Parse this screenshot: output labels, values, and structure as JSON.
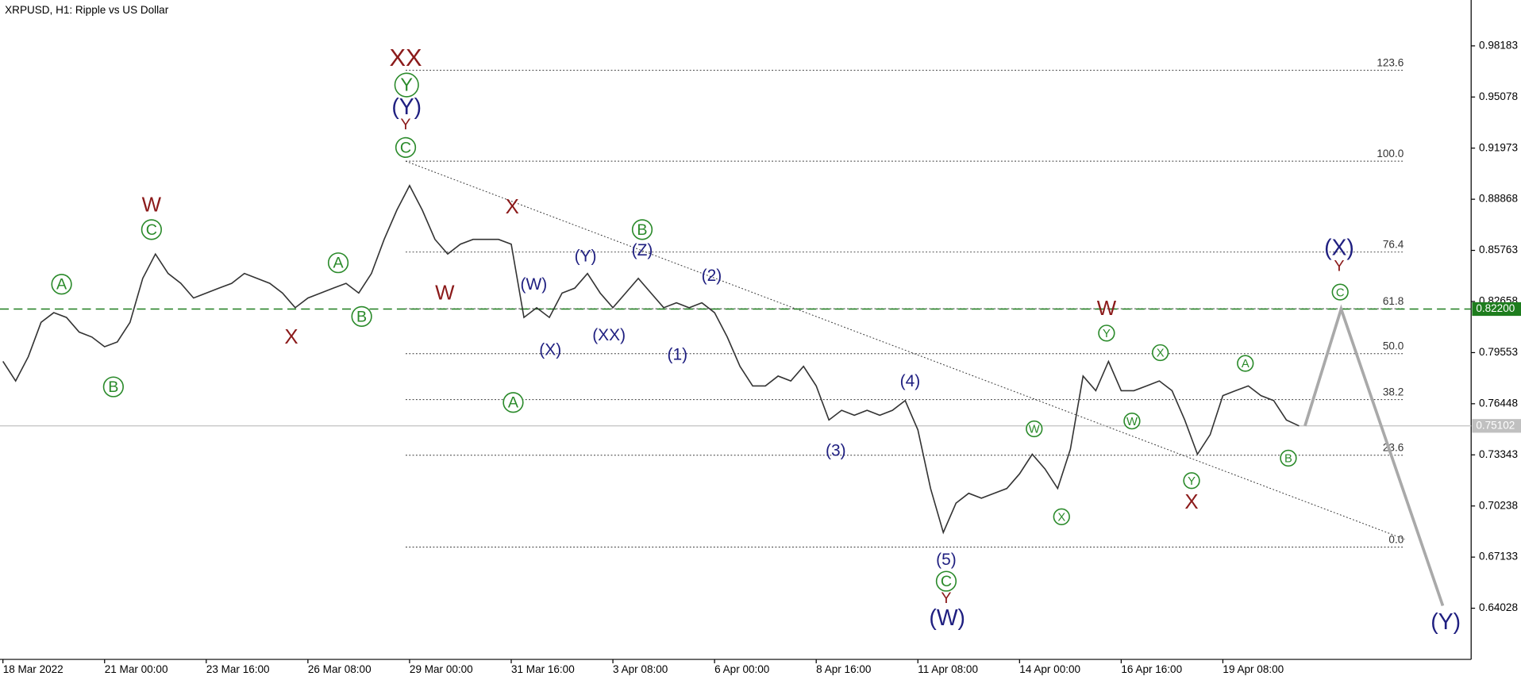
{
  "chart_data": {
    "type": "line",
    "title": "XRPUSD, H1:  Ripple vs US Dollar",
    "color": "#333333",
    "categories": [
      "18 Mar 2022",
      null,
      null,
      null,
      null,
      null,
      null,
      null,
      "21 Mar 00:00",
      null,
      null,
      null,
      null,
      null,
      null,
      null,
      "23 Mar 16:00",
      null,
      null,
      null,
      null,
      null,
      null,
      null,
      "26 Mar 08:00",
      null,
      null,
      null,
      null,
      null,
      null,
      null,
      "29 Mar 00:00",
      null,
      null,
      null,
      null,
      null,
      null,
      null,
      "31 Mar 16:00",
      null,
      null,
      null,
      null,
      null,
      null,
      null,
      "3 Apr 08:00",
      null,
      null,
      null,
      null,
      null,
      null,
      null,
      "6 Apr 00:00",
      null,
      null,
      null,
      null,
      null,
      null,
      null,
      "8 Apr 16:00",
      null,
      null,
      null,
      null,
      null,
      null,
      null,
      "11 Apr 08:00",
      null,
      null,
      null,
      null,
      null,
      null,
      null,
      "14 Apr 00:00",
      null,
      null,
      null,
      null,
      null,
      null,
      null,
      "16 Apr 16:00",
      null,
      null,
      null,
      null,
      null,
      null,
      null,
      "19 Apr 08:00",
      null,
      null,
      null,
      null,
      null,
      null
    ],
    "values": [
      0.7902,
      0.7783,
      0.7931,
      0.8139,
      0.8198,
      0.8169,
      0.808,
      0.805,
      0.7991,
      0.802,
      0.8139,
      0.8406,
      0.8554,
      0.8436,
      0.8376,
      0.8287,
      0.8317,
      0.8347,
      0.8376,
      0.8436,
      0.8406,
      0.8376,
      0.8317,
      0.8228,
      0.8287,
      0.8317,
      0.8347,
      0.8376,
      0.8317,
      0.8436,
      0.8643,
      0.8821,
      0.897,
      0.8821,
      0.8643,
      0.8554,
      0.8614,
      0.8643,
      0.8643,
      0.8643,
      0.8614,
      0.8169,
      0.8228,
      0.8169,
      0.8317,
      0.8347,
      0.8436,
      0.8317,
      0.8228,
      0.8317,
      0.8406,
      0.8317,
      0.8228,
      0.8258,
      0.8228,
      0.8258,
      0.8198,
      0.805,
      0.7872,
      0.7753,
      0.7753,
      0.7813,
      0.7783,
      0.7872,
      0.7753,
      0.7546,
      0.7605,
      0.7575,
      0.7605,
      0.7575,
      0.7605,
      0.7664,
      0.7486,
      0.713,
      0.6863,
      0.7041,
      0.7101,
      0.7071,
      0.7101,
      0.713,
      0.7219,
      0.7338,
      0.7249,
      0.713,
      0.7368,
      0.7813,
      0.7724,
      0.7902,
      0.7724,
      0.7724,
      0.7753,
      0.7783,
      0.7724,
      0.7546,
      0.7338,
      0.7457,
      0.7694,
      0.7724,
      0.7753,
      0.7694,
      0.7664,
      0.7546,
      0.751
    ],
    "forecast": {
      "color": "#a9a9a9",
      "values": [
        0.751,
        0.822,
        0.6418
      ]
    },
    "ylim": [
      0.6092,
      1.0097
    ],
    "yticks": [
      0.98183,
      0.95078,
      0.91973,
      0.88868,
      0.85763,
      0.82658,
      0.79553,
      0.76448,
      0.73343,
      0.70238,
      0.67133,
      0.64028
    ],
    "price_lines": [
      {
        "value": 0.822,
        "label": "0.82200",
        "color": "#1e7d1e",
        "style": "dashed"
      },
      {
        "value": 0.75102,
        "label": "0.75102",
        "color": "#c0c0c0",
        "style": "solid"
      }
    ],
    "fibonacci": {
      "levels": [
        "123.6",
        "100.0",
        "76.4",
        "61.8",
        "50.0",
        "38.2",
        "23.6",
        "0.0"
      ],
      "prices": [
        0.967,
        0.9118,
        0.8566,
        0.8222,
        0.7949,
        0.767,
        0.7332,
        0.6774
      ]
    },
    "trendline": [
      0.9118,
      0.6822
    ],
    "waves": [
      {
        "text": "XX",
        "color": "#8b1a1a",
        "circled": false,
        "size": "large"
      },
      {
        "text": "W",
        "color": "#8b1a1a",
        "circled": false,
        "size": "medium"
      },
      {
        "text": "X",
        "color": "#8b1a1a",
        "circled": false,
        "size": "medium"
      },
      {
        "text": "W",
        "color": "#8b1a1a",
        "circled": false,
        "size": "medium"
      },
      {
        "text": "X",
        "color": "#8b1a1a",
        "circled": false,
        "size": "medium"
      },
      {
        "text": "W",
        "color": "#8b1a1a",
        "circled": false,
        "size": "medium"
      },
      {
        "text": "X",
        "color": "#8b1a1a",
        "circled": false,
        "size": "medium"
      },
      {
        "text": "Y",
        "color": "#8b1a1a",
        "circled": false,
        "size": "small"
      },
      {
        "text": "Y",
        "color": "#8b1a1a",
        "circled": false,
        "size": "small"
      },
      {
        "text": "Y",
        "color": "#8b1a1a",
        "circled": false,
        "size": "small"
      },
      {
        "text": "A",
        "color": "#2a8a2a",
        "circled": true,
        "size": "medium"
      },
      {
        "text": "B",
        "color": "#2a8a2a",
        "circled": true,
        "size": "medium"
      },
      {
        "text": "C",
        "color": "#2a8a2a",
        "circled": true,
        "size": "medium"
      },
      {
        "text": "A",
        "color": "#2a8a2a",
        "circled": true,
        "size": "medium"
      },
      {
        "text": "B",
        "color": "#2a8a2a",
        "circled": true,
        "size": "medium"
      },
      {
        "text": "Y",
        "color": "#2a8a2a",
        "circled": true,
        "size": "large"
      },
      {
        "text": "C",
        "color": "#2a8a2a",
        "circled": true,
        "size": "medium"
      },
      {
        "text": "B",
        "color": "#2a8a2a",
        "circled": true,
        "size": "medium"
      },
      {
        "text": "A",
        "color": "#2a8a2a",
        "circled": true,
        "size": "medium"
      },
      {
        "text": "C",
        "color": "#2a8a2a",
        "circled": true,
        "size": "medium"
      },
      {
        "text": "W",
        "color": "#2a8a2a",
        "circled": true,
        "size": "small"
      },
      {
        "text": "X",
        "color": "#2a8a2a",
        "circled": true,
        "size": "small"
      },
      {
        "text": "Y",
        "color": "#2a8a2a",
        "circled": true,
        "size": "small"
      },
      {
        "text": "W",
        "color": "#2a8a2a",
        "circled": true,
        "size": "small"
      },
      {
        "text": "X",
        "color": "#2a8a2a",
        "circled": true,
        "size": "small"
      },
      {
        "text": "Y",
        "color": "#2a8a2a",
        "circled": true,
        "size": "small"
      },
      {
        "text": "A",
        "color": "#2a8a2a",
        "circled": true,
        "size": "small"
      },
      {
        "text": "B",
        "color": "#2a8a2a",
        "circled": true,
        "size": "small"
      },
      {
        "text": "C",
        "color": "#2a8a2a",
        "circled": true,
        "size": "small"
      },
      {
        "text": "(Y)",
        "color": "#1f1f80",
        "circled": false,
        "size": "large"
      },
      {
        "text": "(W)",
        "color": "#1f1f80",
        "circled": false,
        "size": "medium"
      },
      {
        "text": "(X)",
        "color": "#1f1f80",
        "circled": false,
        "size": "medium"
      },
      {
        "text": "(Y)",
        "color": "#1f1f80",
        "circled": false,
        "size": "medium"
      },
      {
        "text": "(XX)",
        "color": "#1f1f80",
        "circled": false,
        "size": "medium"
      },
      {
        "text": "(Z)",
        "color": "#1f1f80",
        "circled": false,
        "size": "medium"
      },
      {
        "text": "(1)",
        "color": "#1f1f80",
        "circled": false,
        "size": "medium"
      },
      {
        "text": "(2)",
        "color": "#1f1f80",
        "circled": false,
        "size": "medium"
      },
      {
        "text": "(3)",
        "color": "#1f1f80",
        "circled": false,
        "size": "medium"
      },
      {
        "text": "(4)",
        "color": "#1f1f80",
        "circled": false,
        "size": "medium"
      },
      {
        "text": "(5)",
        "color": "#1f1f80",
        "circled": false,
        "size": "medium"
      },
      {
        "text": "(W)",
        "color": "#1f1f80",
        "circled": false,
        "size": "large"
      },
      {
        "text": "(X)",
        "color": "#1f1f80",
        "circled": false,
        "size": "large"
      },
      {
        "text": "(Y)",
        "color": "#1f1f80",
        "circled": false,
        "size": "large"
      }
    ]
  }
}
